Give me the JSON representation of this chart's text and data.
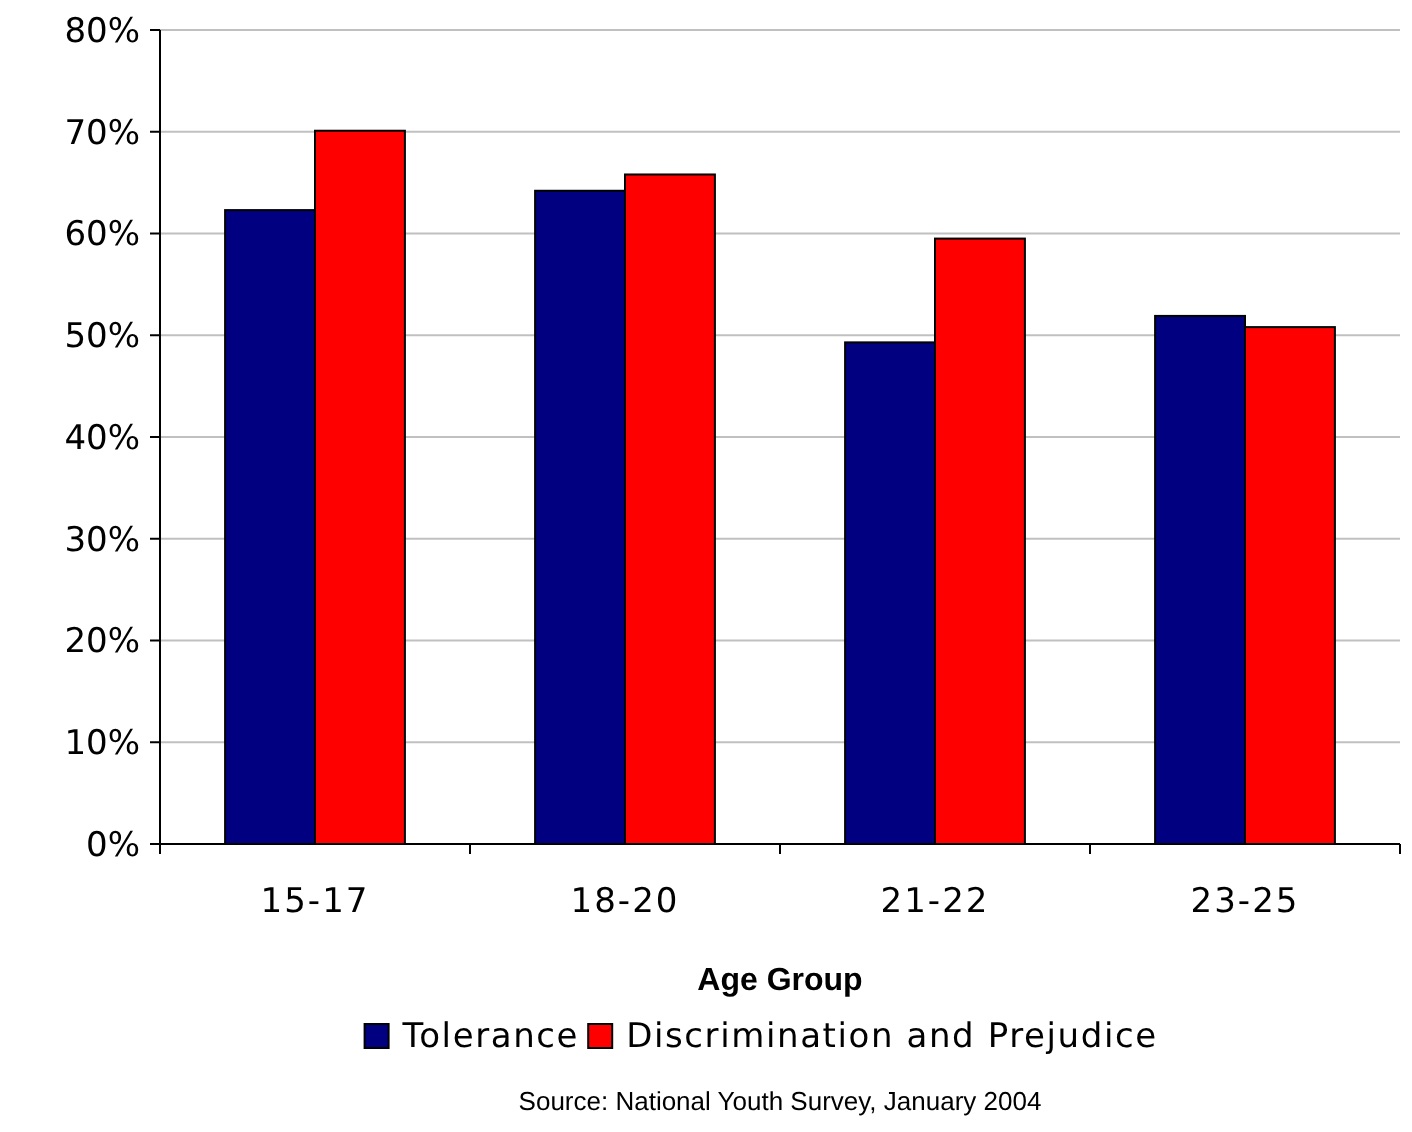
{
  "chart_data": {
    "type": "bar",
    "xlabel": "Age Group",
    "categories": [
      "15-17",
      "18-20",
      "21-22",
      "23-25"
    ],
    "series": [
      {
        "name": "Tolerance",
        "color": "#000080",
        "values": [
          62.3,
          64.2,
          49.3,
          51.9
        ]
      },
      {
        "name": "Discrimination and Prejudice",
        "color": "#ff0000",
        "values": [
          70.1,
          65.8,
          59.5,
          50.8
        ]
      }
    ],
    "ylim": [
      0,
      80
    ],
    "yticks": [
      {
        "value": 0,
        "label": "0%"
      },
      {
        "value": 10,
        "label": "10%"
      },
      {
        "value": 20,
        "label": "20%"
      },
      {
        "value": 30,
        "label": "30%"
      },
      {
        "value": 40,
        "label": "40%"
      },
      {
        "value": 50,
        "label": "50%"
      },
      {
        "value": 60,
        "label": "60%"
      },
      {
        "value": 70,
        "label": "70%"
      },
      {
        "value": 80,
        "label": "80%"
      }
    ],
    "grid": "y",
    "legend": "bottom",
    "annotations": [
      "Source: National Youth Survey, January 2004"
    ]
  }
}
